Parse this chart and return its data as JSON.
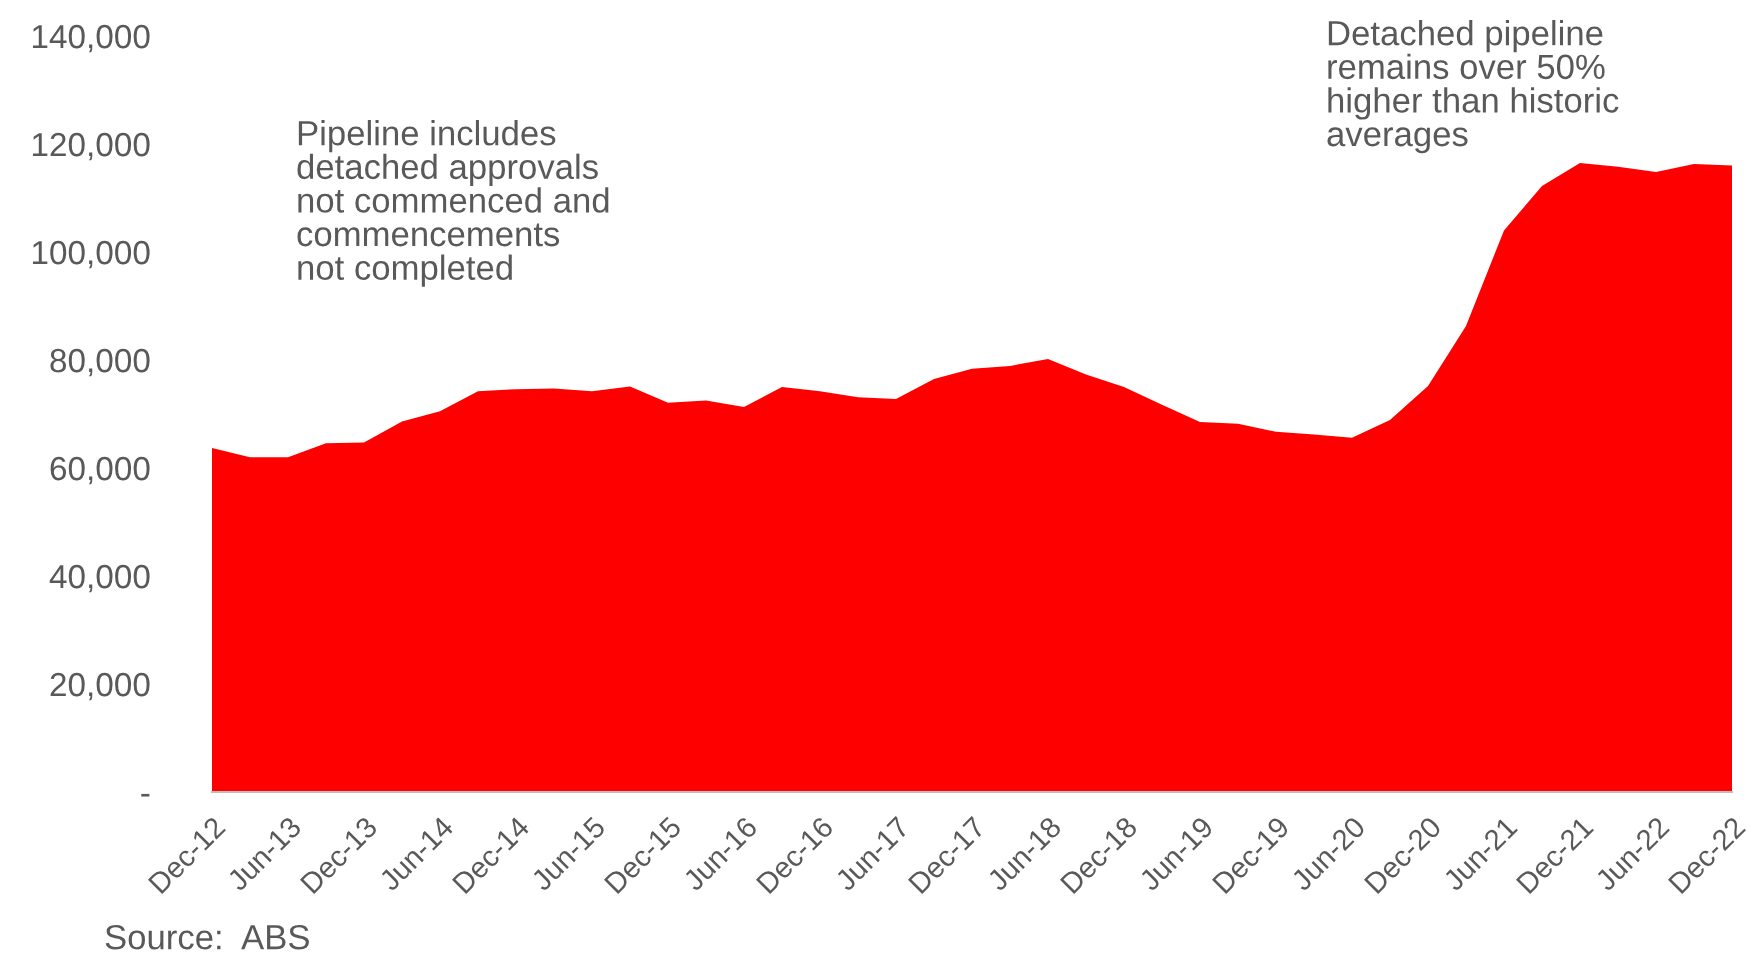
{
  "chart_data": {
    "type": "area",
    "categories": [
      "Dec-12",
      null,
      "Jun-13",
      null,
      "Dec-13",
      null,
      "Jun-14",
      null,
      "Dec-14",
      null,
      "Jun-15",
      null,
      "Dec-15",
      null,
      "Jun-16",
      null,
      "Dec-16",
      null,
      "Jun-17",
      null,
      "Dec-17",
      null,
      "Jun-18",
      null,
      "Dec-18",
      null,
      "Jun-19",
      null,
      "Dec-19",
      null,
      "Jun-20",
      null,
      "Dec-20",
      null,
      "Jun-21",
      null,
      "Dec-21",
      null,
      "Jun-22",
      null,
      "Dec-22"
    ],
    "series": [
      {
        "color": "#ff0000",
        "values": [
          63700,
          62000,
          62000,
          64600,
          64700,
          68600,
          70500,
          74200,
          74600,
          74700,
          74200,
          75100,
          72100,
          72500,
          71300,
          75000,
          74200,
          73100,
          72800,
          76500,
          78400,
          78900,
          80200,
          77300,
          75000,
          71700,
          68500,
          68200,
          66700,
          66200,
          65600,
          68900,
          75200,
          86300,
          104000,
          112200,
          116500,
          115800,
          114800,
          116300,
          116000
        ]
      }
    ],
    "ylim": [
      0,
      140000
    ],
    "yticks": [
      {
        "value": 0,
        "label": "-"
      },
      {
        "value": 20000,
        "label": "20,000"
      },
      {
        "value": 40000,
        "label": "40,000"
      },
      {
        "value": 60000,
        "label": "60,000"
      },
      {
        "value": 80000,
        "label": "80,000"
      },
      {
        "value": 100000,
        "label": "100,000"
      },
      {
        "value": 120000,
        "label": "120,000"
      },
      {
        "value": 140000,
        "label": "140,000"
      }
    ],
    "grid": false,
    "annotations": [
      "Pipeline includes\ndetached approvals\nnot commenced and\ncommencements\nnot completed",
      "Detached pipeline\nremains over 50%\nhigher than historic\naverages",
      "Source:  ABS"
    ]
  }
}
